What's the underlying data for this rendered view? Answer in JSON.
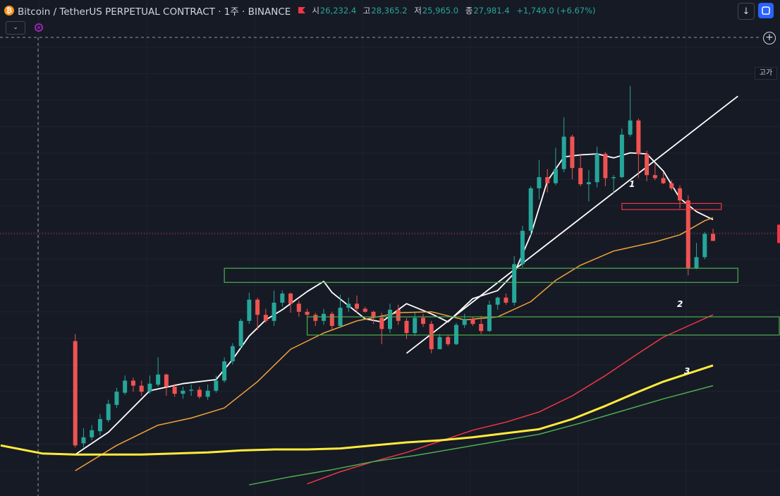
{
  "header": {
    "symbol_title": "Bitcoin / TetherUS PERPETUAL CONTRACT · 1주 · BINANCE",
    "open_label": "시",
    "open_value": "26,232.4",
    "high_label": "고",
    "high_value": "28,365.2",
    "low_label": "저",
    "low_value": "25,965.0",
    "close_label": "종",
    "close_value": "27,981.4",
    "change": "+1,749.0 (+6.67%)",
    "coin_glyph": "₿"
  },
  "badges": {
    "high_badge": "고가"
  },
  "icons": {
    "download": "download-arrow-icon",
    "screenshot": "camera-icon",
    "collapse": "chevron-down-icon",
    "indicator": "indicator-logo-icon",
    "add": "plus-circle-icon"
  },
  "colors": {
    "up": "#26a69a",
    "down": "#ef5350",
    "ma_white": "#ffffff",
    "ma_orange": "#f2a33a",
    "ma_red": "#f23645",
    "ma_yellow": "#ffeb3b",
    "ma_green": "#4caf50",
    "zone_green": "#4caf50",
    "zone_red": "#f23645",
    "background": "#161a25"
  },
  "chart_data": {
    "type": "candlestick",
    "timeframe": "1주",
    "x_unit": "weekly bar index",
    "y_unit": "price (USDT), estimated",
    "candles": [
      [
        26800,
        16500,
        27500,
        16300
      ],
      [
        16700,
        17300,
        18200,
        16300
      ],
      [
        17300,
        18000,
        18500,
        17000
      ],
      [
        17900,
        19100,
        19600,
        17500
      ],
      [
        19000,
        20600,
        21000,
        18800
      ],
      [
        20500,
        21800,
        22200,
        20200
      ],
      [
        21700,
        22900,
        23400,
        21500
      ],
      [
        22900,
        22400,
        23200,
        21800
      ],
      [
        22400,
        21800,
        22900,
        21400
      ],
      [
        21800,
        22600,
        23400,
        21600
      ],
      [
        22500,
        23500,
        25200,
        22300
      ],
      [
        23500,
        22300,
        23600,
        21400
      ],
      [
        22300,
        21600,
        22600,
        21300
      ],
      [
        21600,
        21900,
        22300,
        21100
      ],
      [
        21900,
        22000,
        22500,
        21400
      ],
      [
        22000,
        21300,
        22300,
        21100
      ],
      [
        21300,
        21900,
        22500,
        21000
      ],
      [
        21900,
        22900,
        23400,
        21700
      ],
      [
        22900,
        24800,
        25200,
        22700
      ],
      [
        24800,
        26300,
        26600,
        24500
      ],
      [
        26300,
        28800,
        29000,
        26000
      ],
      [
        28800,
        30900,
        31600,
        28500
      ],
      [
        30900,
        29400,
        31100,
        27900
      ],
      [
        29400,
        28800,
        30000,
        28600
      ],
      [
        28800,
        30600,
        31800,
        28300
      ],
      [
        30600,
        31500,
        31800,
        30200
      ],
      [
        31500,
        30500,
        31600,
        29600
      ],
      [
        30500,
        29700,
        30800,
        29200
      ],
      [
        29700,
        29400,
        30000,
        28700
      ],
      [
        29400,
        28800,
        29600,
        28300
      ],
      [
        28800,
        29500,
        30000,
        28400
      ],
      [
        29500,
        28300,
        29700,
        27800
      ],
      [
        28300,
        30100,
        31400,
        28100
      ],
      [
        30100,
        30500,
        31100,
        29700
      ],
      [
        30500,
        30000,
        31300,
        29600
      ],
      [
        30000,
        29700,
        30200,
        29600
      ],
      [
        29700,
        29100,
        29800,
        28500
      ],
      [
        29100,
        28000,
        29600,
        26500
      ],
      [
        28000,
        29900,
        30500,
        27600
      ],
      [
        29900,
        28800,
        30400,
        28400
      ],
      [
        28800,
        27600,
        29100,
        27000
      ],
      [
        27600,
        29100,
        29600,
        27300
      ],
      [
        29100,
        28500,
        29500,
        28200
      ],
      [
        28500,
        26000,
        28800,
        25600
      ],
      [
        26000,
        27200,
        27500,
        26000
      ],
      [
        27200,
        26500,
        27400,
        26300
      ],
      [
        26500,
        28400,
        28600,
        26400
      ],
      [
        28400,
        29000,
        29500,
        28100
      ],
      [
        29000,
        28500,
        29200,
        28300
      ],
      [
        28500,
        27800,
        29300,
        27500
      ],
      [
        27800,
        30400,
        30800,
        27700
      ],
      [
        30400,
        31100,
        31200,
        29900
      ],
      [
        31100,
        30600,
        31500,
        30400
      ],
      [
        30600,
        34400,
        35200,
        30300
      ],
      [
        34400,
        37700,
        38200,
        34100
      ],
      [
        37700,
        41900,
        42100,
        37200
      ],
      [
        41900,
        43000,
        44700,
        40800
      ],
      [
        43000,
        42400,
        43800,
        41500
      ],
      [
        42400,
        43800,
        45900,
        42200
      ],
      [
        43800,
        47000,
        48900,
        43500
      ],
      [
        47000,
        43900,
        47200,
        42800
      ],
      [
        43900,
        42300,
        45300,
        42100
      ],
      [
        42300,
        42500,
        43700,
        40600
      ],
      [
        42500,
        45300,
        46000,
        42000
      ],
      [
        45300,
        42900,
        45500,
        42100
      ],
      [
        42900,
        43000,
        43200,
        41400
      ],
      [
        43000,
        47200,
        47800,
        42900
      ],
      [
        47200,
        48600,
        52000,
        47000
      ],
      [
        48600,
        45300,
        48800,
        42900
      ],
      [
        45300,
        43200,
        45600,
        42600
      ],
      [
        43200,
        42900,
        44300,
        42700
      ],
      [
        42900,
        42400,
        43500,
        42300
      ],
      [
        42400,
        41900,
        42700,
        41700
      ],
      [
        41900,
        40700,
        42200,
        39900
      ],
      [
        40700,
        34000,
        41200,
        33300
      ],
      [
        34000,
        35100,
        36500,
        33900
      ],
      [
        35100,
        37400,
        37600,
        34900
      ],
      [
        37400,
        36700,
        37900,
        36700
      ]
    ],
    "moving_averages": [
      {
        "values": [
          [
            0,
            15600
          ],
          [
            4,
            17800
          ],
          [
            9,
            21900
          ],
          [
            13,
            22600
          ],
          [
            17,
            23000
          ],
          [
            19,
            25000
          ],
          [
            21,
            27300
          ],
          [
            23,
            28900
          ],
          [
            25,
            29900
          ],
          [
            28,
            31700
          ],
          [
            30,
            32700
          ],
          [
            31,
            31600
          ],
          [
            33,
            30300
          ],
          [
            35,
            29000
          ],
          [
            37,
            28700
          ],
          [
            40,
            30500
          ],
          [
            43,
            29500
          ],
          [
            45,
            28700
          ],
          [
            48,
            31000
          ],
          [
            51,
            31800
          ],
          [
            53,
            33500
          ],
          [
            55,
            37300
          ],
          [
            57,
            42600
          ],
          [
            59,
            45000
          ],
          [
            61,
            45200
          ],
          [
            63,
            45300
          ],
          [
            65,
            44900
          ],
          [
            67,
            45400
          ],
          [
            69,
            45300
          ],
          [
            71,
            43600
          ],
          [
            73,
            40900
          ],
          [
            75,
            39600
          ],
          [
            77,
            38800
          ]
        ]
      },
      {
        "values": [
          [
            0,
            14000
          ],
          [
            5,
            16500
          ],
          [
            10,
            18500
          ],
          [
            14,
            19200
          ],
          [
            18,
            20200
          ],
          [
            22,
            22800
          ],
          [
            26,
            26000
          ],
          [
            30,
            27600
          ],
          [
            34,
            28800
          ],
          [
            39,
            29600
          ],
          [
            43,
            29700
          ],
          [
            47,
            28900
          ],
          [
            51,
            29200
          ],
          [
            55,
            30700
          ],
          [
            58,
            32800
          ],
          [
            61,
            34300
          ],
          [
            65,
            35700
          ],
          [
            70,
            36600
          ],
          [
            73,
            37300
          ],
          [
            76,
            38700
          ],
          [
            77,
            39000
          ]
        ]
      },
      {
        "values": [
          [
            28,
            12700
          ],
          [
            32,
            13900
          ],
          [
            36,
            14900
          ],
          [
            40,
            15800
          ],
          [
            44,
            16900
          ],
          [
            48,
            18000
          ],
          [
            52,
            18800
          ],
          [
            56,
            19800
          ],
          [
            60,
            21400
          ],
          [
            64,
            23400
          ],
          [
            68,
            25600
          ],
          [
            71,
            27200
          ],
          [
            74,
            28300
          ],
          [
            77,
            29400
          ]
        ]
      },
      {
        "values": [
          [
            -9,
            16500
          ],
          [
            -4,
            15700
          ],
          [
            0,
            15600
          ],
          [
            4,
            15600
          ],
          [
            8,
            15600
          ],
          [
            12,
            15700
          ],
          [
            16,
            15800
          ],
          [
            20,
            16000
          ],
          [
            24,
            16100
          ],
          [
            28,
            16100
          ],
          [
            32,
            16200
          ],
          [
            36,
            16500
          ],
          [
            40,
            16800
          ],
          [
            44,
            17000
          ],
          [
            48,
            17300
          ],
          [
            52,
            17700
          ],
          [
            56,
            18100
          ],
          [
            60,
            19100
          ],
          [
            64,
            20400
          ],
          [
            68,
            21800
          ],
          [
            71,
            22800
          ],
          [
            74,
            23600
          ],
          [
            77,
            24400
          ]
        ]
      },
      {
        "values": [
          [
            21,
            12600
          ],
          [
            26,
            13400
          ],
          [
            31,
            14100
          ],
          [
            36,
            14900
          ],
          [
            41,
            15500
          ],
          [
            46,
            16200
          ],
          [
            51,
            16900
          ],
          [
            56,
            17600
          ],
          [
            61,
            18700
          ],
          [
            66,
            19900
          ],
          [
            71,
            21100
          ],
          [
            77,
            22400
          ]
        ]
      }
    ],
    "trendline": {
      "points": [
        [
          40,
          25600
        ],
        [
          80,
          51000
        ]
      ]
    },
    "zones": [
      {
        "label": "1",
        "x": [
          66,
          78
        ],
        "y": [
          39800,
          40400
        ]
      },
      {
        "label": "2",
        "x": [
          18,
          80
        ],
        "y": [
          32600,
          34000
        ]
      },
      {
        "label": "3",
        "x": [
          28,
          85
        ],
        "y": [
          27400,
          29200
        ]
      }
    ],
    "current_price": 37400,
    "y_range": [
      11500,
      60500
    ],
    "x_range": [
      -9,
      85
    ]
  }
}
